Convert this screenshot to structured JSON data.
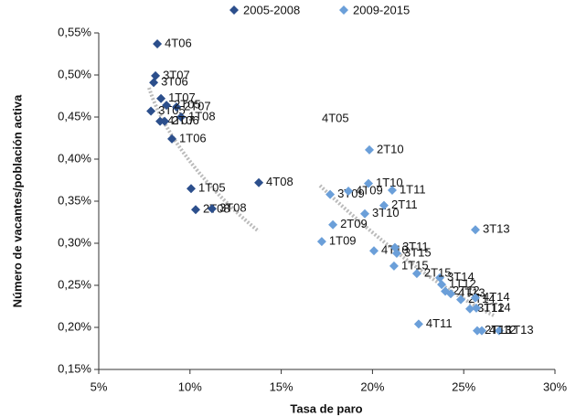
{
  "chart_data": {
    "type": "scatter",
    "x_label": "Tasa de paro",
    "y_label": "Número de vacantes/población activa",
    "xlim": [
      5,
      30
    ],
    "ylim": [
      0.15,
      0.55
    ],
    "xticks": [
      {
        "value": 5,
        "label": "5%"
      },
      {
        "value": 10,
        "label": "10%"
      },
      {
        "value": 15,
        "label": "15%"
      },
      {
        "value": 20,
        "label": "20%"
      },
      {
        "value": 25,
        "label": "25%"
      },
      {
        "value": 30,
        "label": "30%"
      }
    ],
    "yticks": [
      {
        "value": 0.15,
        "label": "0,15%"
      },
      {
        "value": 0.2,
        "label": "0,20%"
      },
      {
        "value": 0.25,
        "label": "0,25%"
      },
      {
        "value": 0.3,
        "label": "0,30%"
      },
      {
        "value": 0.35,
        "label": "0,35%"
      },
      {
        "value": 0.4,
        "label": "0,40%"
      },
      {
        "value": 0.45,
        "label": "0,45%"
      },
      {
        "value": 0.5,
        "label": "0,50%"
      },
      {
        "value": 0.55,
        "label": "0,55%"
      }
    ],
    "grid": false,
    "legend": "top",
    "series": [
      {
        "name": "2005-2008",
        "color": "#2c4f8c",
        "labels": [
          "4T06",
          "3T07",
          "3T06",
          "1T07",
          "3T05",
          "2T07",
          "2T05",
          "4T07",
          "1T08",
          "2T06",
          "1T06",
          "1T05",
          "2T08",
          "3T08",
          "4T08"
        ],
        "x": [
          8.21,
          8.11,
          8.01,
          8.41,
          7.86,
          9.26,
          8.71,
          8.36,
          9.51,
          8.61,
          9.01,
          10.06,
          10.31,
          11.21,
          13.77
        ],
        "values": [
          0.537,
          0.499,
          0.491,
          0.472,
          0.457,
          0.462,
          0.464,
          0.445,
          0.45,
          0.445,
          0.424,
          0.365,
          0.34,
          0.341,
          0.372
        ]
      },
      {
        "name": "2009-2015",
        "color": "#6b9fd9",
        "labels": [
          "1T09",
          "2T09",
          "3T09",
          "4T09",
          "1T10",
          "2T10",
          "3T10",
          "4T10",
          "1T11",
          "2T11",
          "3T11",
          "4T11",
          "1T12",
          "2T12",
          "3T12",
          "4T12",
          "1T13",
          "2T13",
          "3T13",
          "4T13",
          "1T14",
          "2T14",
          "3T14",
          "4T14",
          "1T15",
          "2T15",
          "3T15"
        ],
        "x": [
          17.22,
          17.83,
          17.68,
          18.68,
          19.78,
          19.83,
          19.58,
          20.08,
          21.08,
          20.63,
          21.23,
          22.53,
          23.79,
          23.99,
          25.34,
          25.99,
          26.94,
          25.74,
          25.64,
          24.29,
          25.69,
          24.84,
          23.69,
          25.64,
          21.18,
          22.43,
          21.33
        ],
        "values": [
          0.302,
          0.322,
          0.358,
          0.362,
          0.371,
          0.411,
          0.335,
          0.291,
          0.363,
          0.345,
          0.295,
          0.204,
          0.251,
          0.243,
          0.222,
          0.196,
          0.196,
          0.196,
          0.316,
          0.24,
          0.223,
          0.233,
          0.259,
          0.235,
          0.273,
          0.264,
          0.288
        ]
      }
    ],
    "annotations": [
      "4T05"
    ]
  }
}
